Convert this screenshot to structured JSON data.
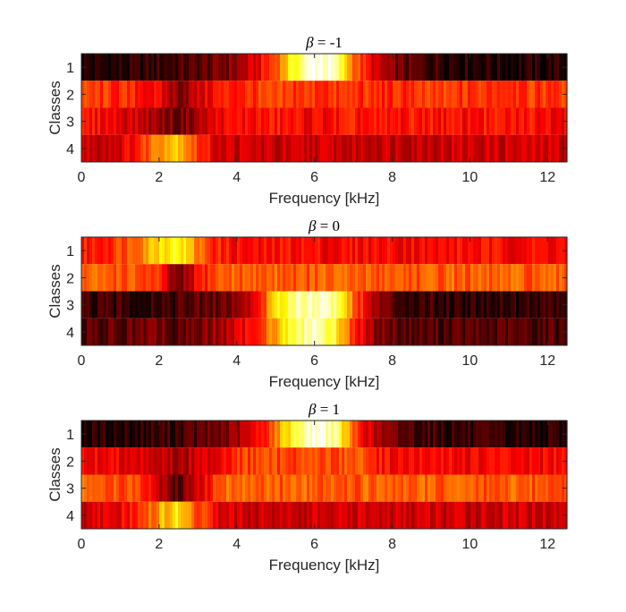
{
  "chart_data": [
    {
      "type": "heatmap",
      "title_symbol": "β",
      "title_rest": " = -1",
      "xlabel": "Frequency [kHz]",
      "ylabel": "Classes",
      "xlim": [
        0,
        12.5
      ],
      "xticks": [
        "0",
        "2",
        "4",
        "6",
        "8",
        "10",
        "12"
      ],
      "rows": [
        "1",
        "2",
        "3",
        "4"
      ],
      "colormap": "hot",
      "columns_khz": [
        0,
        0.5,
        1,
        1.5,
        2,
        2.5,
        3,
        3.5,
        4,
        4.5,
        5,
        5.5,
        6,
        6.5,
        7,
        7.5,
        8,
        8.5,
        9,
        9.5,
        10,
        10.5,
        11,
        11.5,
        12,
        12.5
      ],
      "intensity": [
        [
          0.05,
          0.05,
          0.05,
          0.06,
          0.08,
          0.1,
          0.12,
          0.16,
          0.22,
          0.32,
          0.5,
          0.8,
          1.0,
          0.92,
          0.55,
          0.32,
          0.18,
          0.12,
          0.1,
          0.08,
          0.07,
          0.06,
          0.05,
          0.05,
          0.05,
          0.05
        ],
        [
          0.45,
          0.45,
          0.43,
          0.4,
          0.35,
          0.2,
          0.3,
          0.4,
          0.42,
          0.45,
          0.45,
          0.45,
          0.45,
          0.44,
          0.45,
          0.43,
          0.42,
          0.44,
          0.45,
          0.45,
          0.44,
          0.45,
          0.46,
          0.45,
          0.45,
          0.45
        ],
        [
          0.38,
          0.38,
          0.35,
          0.3,
          0.22,
          0.15,
          0.25,
          0.35,
          0.38,
          0.38,
          0.4,
          0.38,
          0.36,
          0.38,
          0.4,
          0.38,
          0.38,
          0.4,
          0.4,
          0.38,
          0.38,
          0.4,
          0.38,
          0.4,
          0.38,
          0.38
        ],
        [
          0.3,
          0.3,
          0.32,
          0.42,
          0.62,
          0.7,
          0.45,
          0.32,
          0.3,
          0.3,
          0.28,
          0.28,
          0.3,
          0.3,
          0.28,
          0.3,
          0.3,
          0.3,
          0.3,
          0.3,
          0.3,
          0.3,
          0.3,
          0.3,
          0.3,
          0.3
        ]
      ]
    },
    {
      "type": "heatmap",
      "title_symbol": "β",
      "title_rest": " = 0",
      "xlabel": "Frequency [kHz]",
      "ylabel": "Classes",
      "xlim": [
        0,
        12.5
      ],
      "xticks": [
        "0",
        "2",
        "4",
        "6",
        "8",
        "10",
        "12"
      ],
      "rows": [
        "1",
        "2",
        "3",
        "4"
      ],
      "colormap": "hot",
      "columns_khz": [
        0,
        0.5,
        1,
        1.5,
        2,
        2.5,
        3,
        3.5,
        4,
        4.5,
        5,
        5.5,
        6,
        6.5,
        7,
        7.5,
        8,
        8.5,
        9,
        9.5,
        10,
        10.5,
        11,
        11.5,
        12,
        12.5
      ],
      "intensity": [
        [
          0.4,
          0.42,
          0.48,
          0.58,
          0.72,
          0.78,
          0.55,
          0.42,
          0.38,
          0.36,
          0.38,
          0.4,
          0.38,
          0.36,
          0.38,
          0.38,
          0.38,
          0.38,
          0.36,
          0.38,
          0.38,
          0.38,
          0.38,
          0.38,
          0.38,
          0.38
        ],
        [
          0.5,
          0.52,
          0.5,
          0.48,
          0.42,
          0.12,
          0.38,
          0.5,
          0.52,
          0.5,
          0.52,
          0.5,
          0.5,
          0.52,
          0.5,
          0.5,
          0.52,
          0.5,
          0.5,
          0.52,
          0.5,
          0.5,
          0.52,
          0.5,
          0.5,
          0.5
        ],
        [
          0.08,
          0.08,
          0.08,
          0.08,
          0.1,
          0.1,
          0.12,
          0.15,
          0.2,
          0.35,
          0.7,
          0.9,
          0.95,
          0.9,
          0.55,
          0.25,
          0.12,
          0.1,
          0.08,
          0.08,
          0.08,
          0.08,
          0.08,
          0.08,
          0.08,
          0.08
        ],
        [
          0.12,
          0.12,
          0.14,
          0.15,
          0.18,
          0.1,
          0.18,
          0.22,
          0.3,
          0.45,
          0.62,
          0.82,
          0.95,
          0.8,
          0.45,
          0.22,
          0.15,
          0.12,
          0.12,
          0.12,
          0.12,
          0.12,
          0.12,
          0.12,
          0.12,
          0.12
        ]
      ]
    },
    {
      "type": "heatmap",
      "title_symbol": "β",
      "title_rest": " = 1",
      "xlabel": "Frequency [kHz]",
      "ylabel": "Classes",
      "xlim": [
        0,
        12.5
      ],
      "xticks": [
        "0",
        "2",
        "4",
        "6",
        "8",
        "10",
        "12"
      ],
      "rows": [
        "1",
        "2",
        "3",
        "4"
      ],
      "colormap": "hot",
      "columns_khz": [
        0,
        0.5,
        1,
        1.5,
        2,
        2.5,
        3,
        3.5,
        4,
        4.5,
        5,
        5.5,
        6,
        6.5,
        7,
        7.5,
        8,
        8.5,
        9,
        9.5,
        10,
        10.5,
        11,
        11.5,
        12,
        12.5
      ],
      "intensity": [
        [
          0.05,
          0.05,
          0.05,
          0.06,
          0.08,
          0.1,
          0.12,
          0.16,
          0.22,
          0.35,
          0.55,
          0.82,
          1.0,
          0.9,
          0.5,
          0.28,
          0.16,
          0.12,
          0.1,
          0.08,
          0.07,
          0.06,
          0.05,
          0.05,
          0.05,
          0.05
        ],
        [
          0.36,
          0.36,
          0.35,
          0.34,
          0.3,
          0.22,
          0.3,
          0.36,
          0.45,
          0.48,
          0.46,
          0.48,
          0.5,
          0.46,
          0.52,
          0.42,
          0.38,
          0.36,
          0.36,
          0.38,
          0.36,
          0.36,
          0.38,
          0.36,
          0.36,
          0.36
        ],
        [
          0.52,
          0.52,
          0.5,
          0.45,
          0.3,
          0.12,
          0.3,
          0.48,
          0.55,
          0.52,
          0.5,
          0.5,
          0.52,
          0.5,
          0.5,
          0.52,
          0.5,
          0.5,
          0.52,
          0.5,
          0.5,
          0.5,
          0.52,
          0.5,
          0.5,
          0.5
        ],
        [
          0.32,
          0.32,
          0.35,
          0.42,
          0.6,
          0.75,
          0.48,
          0.34,
          0.32,
          0.3,
          0.3,
          0.3,
          0.3,
          0.3,
          0.3,
          0.3,
          0.3,
          0.3,
          0.3,
          0.3,
          0.3,
          0.3,
          0.3,
          0.3,
          0.3,
          0.3
        ]
      ]
    }
  ]
}
